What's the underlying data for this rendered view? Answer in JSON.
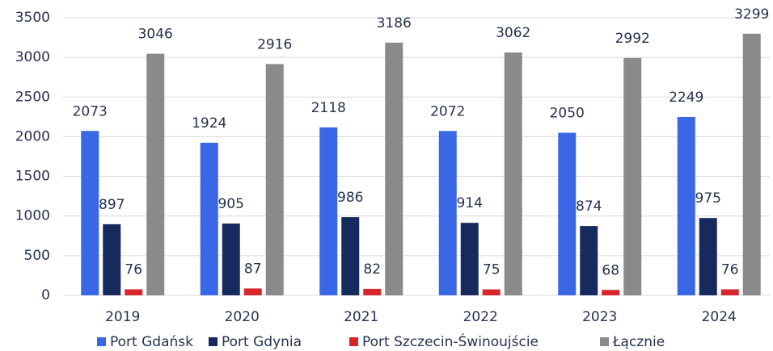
{
  "chart_data": {
    "type": "bar",
    "categories": [
      "2019",
      "2020",
      "2021",
      "2022",
      "2023",
      "2024"
    ],
    "series": [
      {
        "name": "Port Gdańsk",
        "color": "#3a67e6",
        "values": [
          2073,
          1924,
          2118,
          2072,
          2050,
          2249
        ]
      },
      {
        "name": "Port Gdynia",
        "color": "#172a5e",
        "values": [
          897,
          905,
          986,
          914,
          874,
          975
        ]
      },
      {
        "name": "Port Szczecin-Świnoujście",
        "color": "#d7262b",
        "values": [
          76,
          87,
          82,
          75,
          68,
          76
        ]
      },
      {
        "name": "Łącznie",
        "color": "#8a8a8a",
        "values": [
          3046,
          2916,
          3186,
          3062,
          2992,
          3299
        ]
      }
    ],
    "ylim": [
      0,
      3500
    ],
    "yticks": [
      0,
      500,
      1000,
      1500,
      2000,
      2500,
      3000,
      3500
    ],
    "grid": true,
    "legend": "bottom"
  }
}
